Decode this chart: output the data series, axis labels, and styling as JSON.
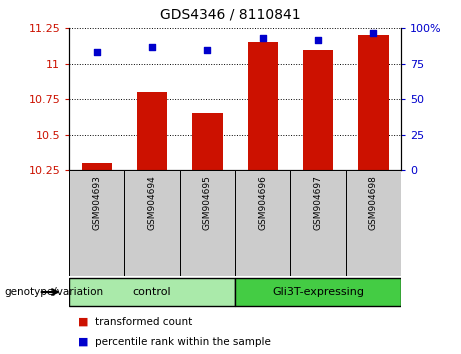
{
  "title": "GDS4346 / 8110841",
  "categories": [
    "GSM904693",
    "GSM904694",
    "GSM904695",
    "GSM904696",
    "GSM904697",
    "GSM904698"
  ],
  "bar_values": [
    10.3,
    10.8,
    10.65,
    11.15,
    11.1,
    11.2
  ],
  "scatter_values": [
    83,
    87,
    85,
    93,
    92,
    97
  ],
  "ylim_left": [
    10.25,
    11.25
  ],
  "ylim_right": [
    0,
    100
  ],
  "yticks_left": [
    10.25,
    10.5,
    10.75,
    11.0,
    11.25
  ],
  "ytick_labels_left": [
    "10.25",
    "10.5",
    "10.75",
    "11",
    "11.25"
  ],
  "yticks_right": [
    0,
    25,
    50,
    75,
    100
  ],
  "ytick_labels_right": [
    "0",
    "25",
    "50",
    "75",
    "100%"
  ],
  "bar_color": "#cc1100",
  "scatter_color": "#0000cc",
  "bar_bottom": 10.25,
  "groups": [
    {
      "label": "control",
      "indices": [
        0,
        1,
        2
      ],
      "color": "#aaeaaa"
    },
    {
      "label": "Gli3T-expressing",
      "indices": [
        3,
        4,
        5
      ],
      "color": "#44cc44"
    }
  ],
  "group_label_prefix": "genotype/variation",
  "legend_items": [
    {
      "color": "#cc1100",
      "label": "transformed count"
    },
    {
      "color": "#0000cc",
      "label": "percentile rank within the sample"
    }
  ],
  "tick_label_area_color": "#cccccc",
  "figure_width": 4.61,
  "figure_height": 3.54,
  "dpi": 100
}
